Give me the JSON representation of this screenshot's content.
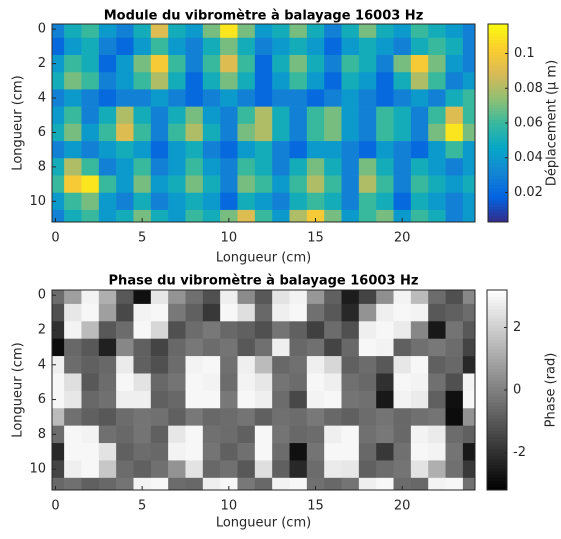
{
  "chart_data": [
    {
      "type": "heatmap",
      "title": "Module du vibromètre à balayage 16003 Hz",
      "xlabel": "Longueur (cm)",
      "ylabel": "Longueur (cm)",
      "colorbar_label": "Déplacement (µ m)",
      "colormap": "parula",
      "x": [
        0,
        1,
        2,
        3,
        4,
        5,
        6,
        7,
        8,
        9,
        10,
        11,
        12,
        13,
        14,
        15,
        16,
        17,
        18,
        19,
        20,
        21,
        22,
        23,
        24
      ],
      "y": [
        0,
        1,
        2,
        3,
        4,
        5,
        6,
        7,
        8,
        9,
        10,
        11
      ],
      "xlim": [
        -0.2,
        24.2
      ],
      "ylim": [
        11.2,
        -0.3
      ],
      "xticks": [
        0,
        5,
        10,
        15,
        20
      ],
      "yticks": [
        0,
        2,
        4,
        6,
        8,
        10
      ],
      "clim": [
        0.003,
        0.117
      ],
      "cticks": [
        0.02,
        0.04,
        0.06,
        0.08,
        0.1
      ],
      "z": [
        [
          0.03,
          0.05,
          0.06,
          0.04,
          0.03,
          0.05,
          0.09,
          0.05,
          0.04,
          0.07,
          0.11,
          0.07,
          0.04,
          0.05,
          0.07,
          0.05,
          0.03,
          0.05,
          0.07,
          0.05,
          0.04,
          0.06,
          0.05,
          0.04,
          0.03
        ],
        [
          0.02,
          0.04,
          0.05,
          0.03,
          0.02,
          0.04,
          0.06,
          0.04,
          0.03,
          0.05,
          0.07,
          0.05,
          0.03,
          0.04,
          0.05,
          0.04,
          0.02,
          0.04,
          0.05,
          0.04,
          0.03,
          0.05,
          0.06,
          0.05,
          0.03
        ],
        [
          0.04,
          0.06,
          0.05,
          0.02,
          0.04,
          0.07,
          0.1,
          0.06,
          0.03,
          0.06,
          0.09,
          0.06,
          0.02,
          0.05,
          0.07,
          0.05,
          0.03,
          0.06,
          0.05,
          0.03,
          0.07,
          0.1,
          0.07,
          0.04,
          0.03
        ],
        [
          0.05,
          0.07,
          0.06,
          0.03,
          0.04,
          0.06,
          0.08,
          0.05,
          0.02,
          0.05,
          0.07,
          0.05,
          0.02,
          0.04,
          0.06,
          0.04,
          0.02,
          0.05,
          0.04,
          0.02,
          0.05,
          0.08,
          0.06,
          0.03,
          0.04
        ],
        [
          0.03,
          0.04,
          0.03,
          0.02,
          0.03,
          0.03,
          0.04,
          0.03,
          0.02,
          0.03,
          0.04,
          0.03,
          0.02,
          0.03,
          0.03,
          0.02,
          0.03,
          0.04,
          0.03,
          0.02,
          0.03,
          0.04,
          0.03,
          0.05,
          0.06
        ],
        [
          0.04,
          0.06,
          0.03,
          0.05,
          0.08,
          0.05,
          0.03,
          0.05,
          0.07,
          0.04,
          0.03,
          0.06,
          0.08,
          0.05,
          0.03,
          0.06,
          0.07,
          0.04,
          0.03,
          0.06,
          0.05,
          0.03,
          0.06,
          0.09,
          0.06
        ],
        [
          0.05,
          0.07,
          0.04,
          0.06,
          0.09,
          0.06,
          0.03,
          0.06,
          0.08,
          0.05,
          0.03,
          0.07,
          0.08,
          0.05,
          0.03,
          0.06,
          0.07,
          0.04,
          0.03,
          0.06,
          0.05,
          0.03,
          0.07,
          0.11,
          0.07
        ],
        [
          0.03,
          0.04,
          0.03,
          0.04,
          0.05,
          0.04,
          0.02,
          0.04,
          0.05,
          0.03,
          0.02,
          0.04,
          0.05,
          0.03,
          0.02,
          0.04,
          0.04,
          0.03,
          0.02,
          0.04,
          0.03,
          0.02,
          0.04,
          0.06,
          0.04
        ],
        [
          0.05,
          0.08,
          0.06,
          0.03,
          0.04,
          0.06,
          0.03,
          0.04,
          0.06,
          0.04,
          0.03,
          0.06,
          0.05,
          0.03,
          0.05,
          0.07,
          0.05,
          0.03,
          0.07,
          0.05,
          0.03,
          0.05,
          0.04,
          0.03,
          0.04
        ],
        [
          0.06,
          0.1,
          0.11,
          0.06,
          0.04,
          0.07,
          0.04,
          0.05,
          0.07,
          0.05,
          0.03,
          0.07,
          0.06,
          0.04,
          0.06,
          0.08,
          0.06,
          0.03,
          0.08,
          0.06,
          0.03,
          0.06,
          0.05,
          0.04,
          0.05
        ],
        [
          0.04,
          0.06,
          0.07,
          0.04,
          0.03,
          0.05,
          0.03,
          0.04,
          0.05,
          0.04,
          0.02,
          0.05,
          0.04,
          0.03,
          0.05,
          0.06,
          0.05,
          0.03,
          0.06,
          0.05,
          0.02,
          0.05,
          0.04,
          0.03,
          0.04
        ],
        [
          0.03,
          0.05,
          0.06,
          0.04,
          0.05,
          0.07,
          0.05,
          0.04,
          0.06,
          0.05,
          0.07,
          0.09,
          0.06,
          0.04,
          0.08,
          0.1,
          0.07,
          0.04,
          0.06,
          0.07,
          0.04,
          0.06,
          0.05,
          0.03,
          0.04
        ]
      ]
    },
    {
      "type": "heatmap",
      "title": "Phase du vibromètre à balayage 16003 Hz",
      "xlabel": "Longueur (cm)",
      "ylabel": "Longueur (cm)",
      "colorbar_label": "Phase (rad)",
      "colormap": "gray",
      "x": [
        0,
        1,
        2,
        3,
        4,
        5,
        6,
        7,
        8,
        9,
        10,
        11,
        12,
        13,
        14,
        15,
        16,
        17,
        18,
        19,
        20,
        21,
        22,
        23,
        24
      ],
      "y": [
        0,
        1,
        2,
        3,
        4,
        5,
        6,
        7,
        8,
        9,
        10,
        11
      ],
      "xlim": [
        -0.2,
        24.2
      ],
      "ylim": [
        11.2,
        -0.3
      ],
      "xticks": [
        0,
        5,
        10,
        15,
        20
      ],
      "yticks": [
        0,
        2,
        4,
        6,
        8,
        10
      ],
      "clim": [
        -3.2,
        3.2
      ],
      "cticks": [
        -2,
        0,
        2
      ],
      "z": [
        [
          -0.5,
          0.8,
          2.9,
          1.2,
          -1.0,
          -2.8,
          2.6,
          0.5,
          -0.4,
          -1.2,
          2.8,
          0.3,
          -1.0,
          2.5,
          2.9,
          0.6,
          -0.8,
          -2.5,
          -1.5,
          0.4,
          2.9,
          1.5,
          -0.5,
          -1.2,
          0.2
        ],
        [
          -1.2,
          2.6,
          3.0,
          0.8,
          -1.4,
          2.9,
          3.0,
          -0.2,
          -0.8,
          -1.8,
          3.0,
          2.4,
          -0.6,
          2.8,
          3.0,
          -0.4,
          -1.0,
          -2.2,
          0.5,
          2.8,
          3.0,
          2.9,
          -1.0,
          -0.8,
          -0.5
        ],
        [
          -2.0,
          2.9,
          1.5,
          -1.0,
          -0.5,
          3.0,
          2.2,
          -1.2,
          -0.5,
          -0.2,
          -0.6,
          -0.8,
          -1.2,
          -0.3,
          -0.8,
          -1.6,
          -0.5,
          -1.2,
          2.8,
          3.0,
          2.7,
          0.2,
          -2.6,
          -0.3,
          -1.0
        ],
        [
          -2.9,
          -0.6,
          -1.0,
          -2.4,
          0.2,
          -0.8,
          -1.5,
          -0.6,
          -0.2,
          -0.5,
          -0.3,
          -1.0,
          -0.4,
          2.8,
          -0.6,
          -0.4,
          -1.5,
          -0.6,
          3.0,
          2.9,
          -0.8,
          -0.4,
          -0.2,
          -0.5,
          -1.5
        ],
        [
          2.8,
          -0.5,
          -0.8,
          -0.6,
          2.7,
          -0.8,
          -1.2,
          -0.5,
          2.9,
          3.0,
          -0.4,
          2.8,
          1.5,
          -0.6,
          -0.4,
          2.8,
          2.2,
          -0.8,
          -0.5,
          -1.0,
          2.6,
          3.0,
          -0.8,
          -0.6,
          -2.2
        ],
        [
          3.0,
          2.4,
          -1.0,
          -0.5,
          3.0,
          2.5,
          -0.6,
          -0.3,
          3.0,
          2.9,
          -0.5,
          2.9,
          2.6,
          -0.3,
          -0.5,
          3.0,
          2.8,
          -0.4,
          -0.6,
          -2.0,
          3.0,
          2.9,
          -0.4,
          -1.2,
          2.9
        ],
        [
          3.0,
          2.6,
          -0.6,
          -0.4,
          2.8,
          2.8,
          -0.8,
          -0.6,
          3.0,
          3.0,
          -0.2,
          3.0,
          2.8,
          -0.5,
          -1.4,
          2.9,
          3.0,
          -0.3,
          -0.4,
          -2.6,
          2.9,
          2.7,
          -0.8,
          -2.8,
          3.0
        ],
        [
          1.5,
          -0.4,
          -0.8,
          -1.0,
          -0.5,
          -0.3,
          -0.4,
          -0.8,
          -0.2,
          -0.6,
          -0.5,
          -0.3,
          -0.8,
          -0.4,
          -0.5,
          -0.2,
          -0.6,
          -0.8,
          -0.5,
          -0.3,
          -0.6,
          -0.4,
          -0.3,
          -2.9,
          0.5
        ],
        [
          -0.5,
          3.0,
          2.9,
          -0.4,
          -0.6,
          -0.3,
          -0.8,
          2.6,
          3.0,
          -0.4,
          -0.5,
          -0.8,
          3.0,
          -0.3,
          -0.6,
          -0.5,
          2.8,
          3.0,
          -0.4,
          -0.2,
          -0.6,
          2.9,
          2.7,
          -0.5,
          -0.8
        ],
        [
          -2.2,
          3.0,
          3.0,
          2.5,
          -0.8,
          -0.5,
          -0.6,
          2.9,
          3.0,
          -0.3,
          -0.8,
          -0.4,
          3.0,
          -0.5,
          -2.8,
          -0.3,
          3.0,
          3.0,
          -0.6,
          -1.8,
          -0.4,
          3.0,
          2.9,
          -0.3,
          -2.6
        ],
        [
          -1.5,
          2.8,
          3.0,
          1.8,
          -0.5,
          -0.8,
          -0.4,
          0.5,
          2.5,
          -0.6,
          -0.4,
          -1.0,
          2.4,
          -0.8,
          -2.2,
          -0.5,
          2.7,
          2.6,
          -0.8,
          -0.5,
          -0.3,
          2.5,
          1.2,
          -0.4,
          -1.8
        ],
        [
          -0.6,
          -0.4,
          -0.8,
          -0.6,
          -0.3,
          2.9,
          3.0,
          -0.5,
          -0.6,
          2.8,
          3.0,
          -0.2,
          -0.6,
          2.9,
          3.0,
          -0.4,
          -0.6,
          -0.3,
          2.8,
          3.0,
          -0.5,
          -0.6,
          2.9,
          3.0,
          -0.4
        ]
      ]
    }
  ]
}
